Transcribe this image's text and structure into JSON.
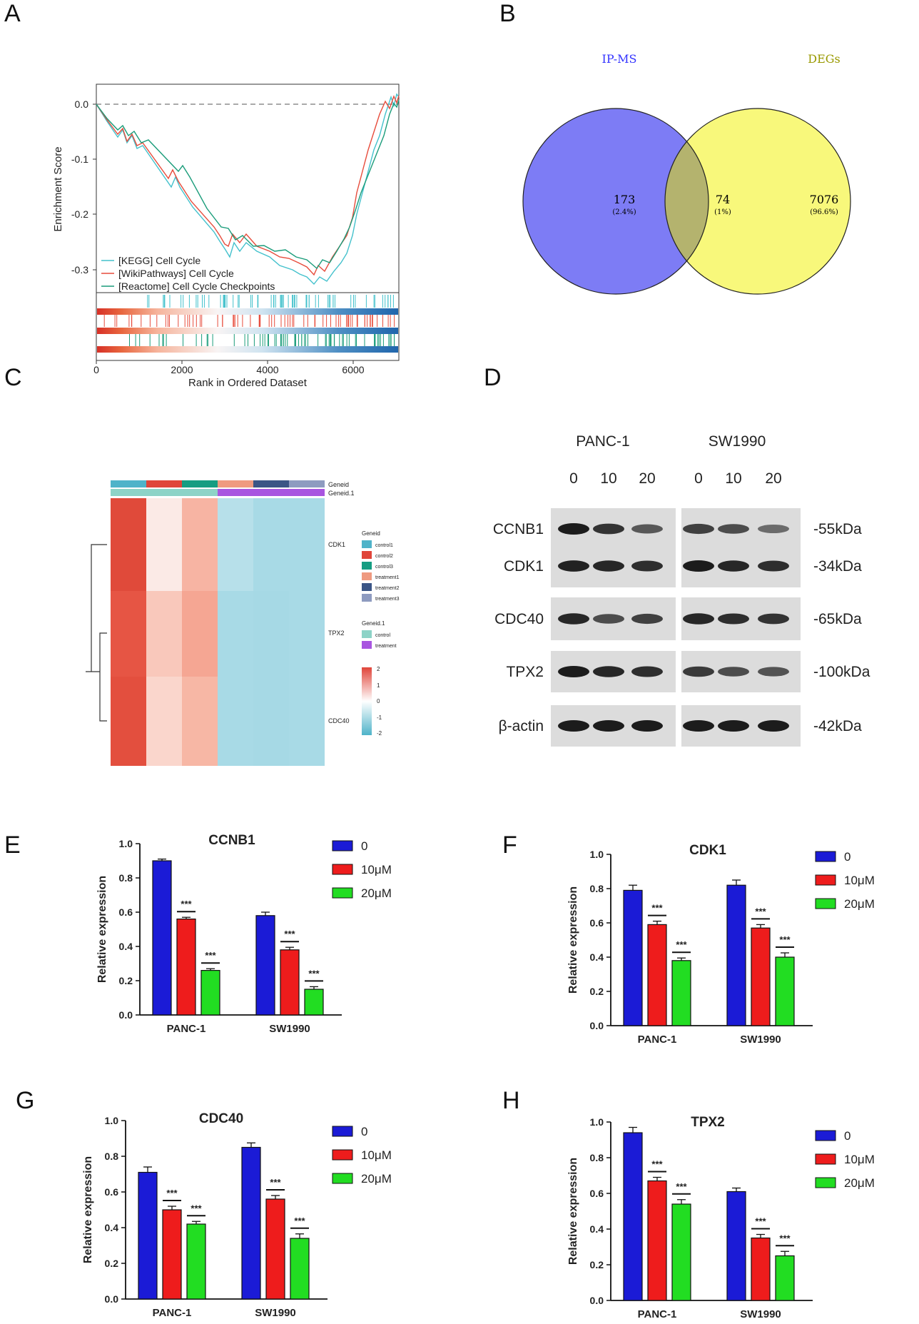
{
  "panels": {
    "A": "A",
    "B": "B",
    "C": "C",
    "D": "D",
    "E": "E",
    "F": "F",
    "G": "G",
    "H": "H"
  },
  "gsea": {
    "ylabel": "Enrichment Score",
    "xlabel": "Rank in Ordered Dataset",
    "yticks": [
      "0.0",
      "-0.1",
      "-0.2",
      "-0.3"
    ],
    "xticks": [
      "0",
      "2000",
      "4000",
      "6000"
    ],
    "legend": [
      {
        "label": "[KEGG] Cell Cycle",
        "color": "#43c1cc"
      },
      {
        "label": "[WikiPathways] Cell Cycle",
        "color": "#e74c3c"
      },
      {
        "label": "[Reactome] Cell Cycle Checkpoints",
        "color": "#1a9c7a"
      }
    ]
  },
  "venn": {
    "left_label": "IP-MS",
    "right_label": "DEGs",
    "left_count": "173",
    "left_pct": "(2.4%)",
    "mid_count": "74",
    "mid_pct": "(1%)",
    "right_count": "7076",
    "right_pct": "(96.6%)",
    "left_color": "#7d7cf5",
    "right_color": "#f8f87b",
    "overlap_color": "#b4b36e",
    "left_text_color": "#3333ff",
    "right_text_color": "#999900"
  },
  "heatmap": {
    "annotation_labels": [
      "Geneid",
      "Geneid.1"
    ],
    "rows": [
      "CDK1",
      "TPX2",
      "CDC40"
    ],
    "legend_title_1": "Geneid",
    "legend_items_1": [
      {
        "label": "control1",
        "color": "#4fb3c9"
      },
      {
        "label": "control2",
        "color": "#e0453a"
      },
      {
        "label": "control3",
        "color": "#169d82"
      },
      {
        "label": "treatment1",
        "color": "#ef9a80"
      },
      {
        "label": "treatment2",
        "color": "#3b5586"
      },
      {
        "label": "treatment3",
        "color": "#8e9bc0"
      }
    ],
    "legend_title_2": "Geneid.1",
    "legend_items_2": [
      {
        "label": "control",
        "color": "#8dd3c7"
      },
      {
        "label": "treatment",
        "color": "#a855e0"
      }
    ],
    "scale_ticks": [
      "2",
      "1",
      "0",
      "-1",
      "-2"
    ]
  },
  "western": {
    "cell_lines": [
      "PANC-1",
      "SW1990"
    ],
    "doses": [
      "0",
      "10",
      "20",
      "0",
      "10",
      "20"
    ],
    "proteins": [
      "CCNB1",
      "CDK1",
      "CDC40",
      "TPX2",
      "β-actin"
    ],
    "sizes": [
      "-55kDa",
      "-34kDa",
      "-65kDa",
      "-100kDa",
      "-42kDa"
    ]
  },
  "chart_data": [
    {
      "id": "E",
      "type": "bar",
      "title": "CCNB1",
      "ylabel": "Relative expression",
      "ylim": [
        0,
        1.0
      ],
      "yticks": [
        "0.0",
        "0.2",
        "0.4",
        "0.6",
        "0.8",
        "1.0"
      ],
      "categories": [
        "PANC-1",
        "SW1990"
      ],
      "series": [
        {
          "name": "0",
          "color": "#1b1bd6",
          "values": [
            0.9,
            0.58
          ],
          "errors": [
            0.01,
            0.02
          ],
          "sig": [
            "",
            ""
          ]
        },
        {
          "name": "10μM",
          "color": "#ee1c1c",
          "values": [
            0.56,
            0.38
          ],
          "errors": [
            0.01,
            0.015
          ],
          "sig": [
            "***",
            "***"
          ]
        },
        {
          "name": "20μM",
          "color": "#22dd22",
          "values": [
            0.26,
            0.15
          ],
          "errors": [
            0.01,
            0.015
          ],
          "sig": [
            "***",
            "***"
          ]
        }
      ]
    },
    {
      "id": "F",
      "type": "bar",
      "title": "CDK1",
      "ylabel": "Relative expression",
      "ylim": [
        0,
        1.0
      ],
      "yticks": [
        "0.0",
        "0.2",
        "0.4",
        "0.6",
        "0.8",
        "1.0"
      ],
      "categories": [
        "PANC-1",
        "SW1990"
      ],
      "series": [
        {
          "name": "0",
          "color": "#1b1bd6",
          "values": [
            0.79,
            0.82
          ],
          "errors": [
            0.03,
            0.03
          ],
          "sig": [
            "",
            ""
          ]
        },
        {
          "name": "10μM",
          "color": "#ee1c1c",
          "values": [
            0.59,
            0.57
          ],
          "errors": [
            0.02,
            0.02
          ],
          "sig": [
            "***",
            "***"
          ]
        },
        {
          "name": "20μM",
          "color": "#22dd22",
          "values": [
            0.38,
            0.4
          ],
          "errors": [
            0.015,
            0.025
          ],
          "sig": [
            "***",
            "***"
          ]
        }
      ]
    },
    {
      "id": "G",
      "type": "bar",
      "title": "CDC40",
      "ylabel": "Relative expression",
      "ylim": [
        0,
        1.0
      ],
      "yticks": [
        "0.0",
        "0.2",
        "0.4",
        "0.6",
        "0.8",
        "1.0"
      ],
      "categories": [
        "PANC-1",
        "SW1990"
      ],
      "series": [
        {
          "name": "0",
          "color": "#1b1bd6",
          "values": [
            0.71,
            0.85
          ],
          "errors": [
            0.03,
            0.025
          ],
          "sig": [
            "",
            ""
          ]
        },
        {
          "name": "10μM",
          "color": "#ee1c1c",
          "values": [
            0.5,
            0.56
          ],
          "errors": [
            0.02,
            0.02
          ],
          "sig": [
            "***",
            "***"
          ]
        },
        {
          "name": "20μM",
          "color": "#22dd22",
          "values": [
            0.42,
            0.34
          ],
          "errors": [
            0.015,
            0.025
          ],
          "sig": [
            "***",
            "***"
          ]
        }
      ]
    },
    {
      "id": "H",
      "type": "bar",
      "title": "TPX2",
      "ylabel": "Relative expression",
      "ylim": [
        0,
        1.0
      ],
      "yticks": [
        "0.0",
        "0.2",
        "0.4",
        "0.6",
        "0.8",
        "1.0"
      ],
      "categories": [
        "PANC-1",
        "SW1990"
      ],
      "series": [
        {
          "name": "0",
          "color": "#1b1bd6",
          "values": [
            0.94,
            0.61
          ],
          "errors": [
            0.03,
            0.02
          ],
          "sig": [
            "",
            ""
          ]
        },
        {
          "name": "10μM",
          "color": "#ee1c1c",
          "values": [
            0.67,
            0.35
          ],
          "errors": [
            0.02,
            0.02
          ],
          "sig": [
            "***",
            "***"
          ]
        },
        {
          "name": "20μM",
          "color": "#22dd22",
          "values": [
            0.54,
            0.25
          ],
          "errors": [
            0.025,
            0.025
          ],
          "sig": [
            "***",
            "***"
          ]
        }
      ]
    }
  ]
}
